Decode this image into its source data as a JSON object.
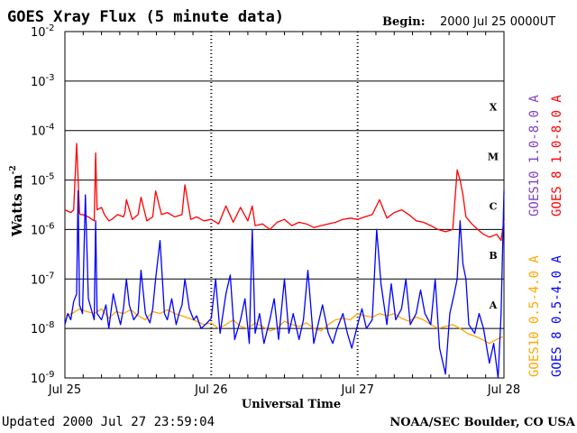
{
  "chart_data": {
    "type": "line",
    "title": "GOES Xray Flux (5 minute data)",
    "begin_label": "Begin:",
    "begin_value": "2000 Jul 25 0000UT",
    "xlabel": "Universal Time",
    "ylabel": "Watts m",
    "ylabel_sup": "-2",
    "y_scale": "log",
    "ylim": [
      1e-09,
      0.01
    ],
    "y_ticks": [
      {
        "value": 0.01,
        "base": "10",
        "exp": "-2"
      },
      {
        "value": 0.001,
        "base": "10",
        "exp": "-3"
      },
      {
        "value": 0.0001,
        "base": "10",
        "exp": "-4"
      },
      {
        "value": 1e-05,
        "base": "10",
        "exp": "-5"
      },
      {
        "value": 1e-06,
        "base": "10",
        "exp": "-6"
      },
      {
        "value": 1e-07,
        "base": "10",
        "exp": "-7"
      },
      {
        "value": 1e-08,
        "base": "10",
        "exp": "-8"
      },
      {
        "value": 1e-09,
        "base": "10",
        "exp": "-9"
      }
    ],
    "x_domain_days": [
      0,
      3
    ],
    "x_ticks": [
      {
        "value": 0,
        "label": "Jul 25"
      },
      {
        "value": 1,
        "label": "Jul 26"
      },
      {
        "value": 2,
        "label": "Jul 27"
      },
      {
        "value": 3,
        "label": "Jul 28"
      }
    ],
    "flare_classes": [
      {
        "label": "X",
        "value": 0.0003
      },
      {
        "label": "M",
        "value": 3e-05
      },
      {
        "label": "C",
        "value": 3e-06
      },
      {
        "label": "B",
        "value": 3e-07
      },
      {
        "label": "A",
        "value": 3e-08
      }
    ],
    "grid": "horizontal lines at each decade 1e-8 to 1e-3; dotted vertical lines at day boundaries",
    "legend_position": "right, vertical",
    "series": [
      {
        "name": "GOES10 1.0-8.0 A",
        "color": "#8040c0",
        "x": [],
        "y": []
      },
      {
        "name": "GOES 8 1.0-8.0 A",
        "color": "#ff0000",
        "x": [
          0.0,
          0.04,
          0.06,
          0.08,
          0.1,
          0.105,
          0.12,
          0.14,
          0.16,
          0.2,
          0.21,
          0.22,
          0.25,
          0.27,
          0.3,
          0.32,
          0.36,
          0.4,
          0.41,
          0.42,
          0.46,
          0.5,
          0.52,
          0.56,
          0.6,
          0.62,
          0.66,
          0.7,
          0.75,
          0.8,
          0.82,
          0.86,
          0.9,
          0.95,
          1.0,
          1.05,
          1.1,
          1.15,
          1.2,
          1.25,
          1.28,
          1.3,
          1.35,
          1.4,
          1.45,
          1.5,
          1.55,
          1.6,
          1.65,
          1.7,
          1.75,
          1.8,
          1.85,
          1.9,
          1.95,
          2.0,
          2.05,
          2.1,
          2.15,
          2.2,
          2.25,
          2.3,
          2.35,
          2.4,
          2.45,
          2.5,
          2.55,
          2.6,
          2.65,
          2.68,
          2.7,
          2.72,
          2.74,
          2.78,
          2.82,
          2.86,
          2.9,
          2.95,
          2.98,
          3.0
        ],
        "y": [
          2.5e-06,
          2.2e-06,
          2.5e-06,
          5.5e-05,
          2.2e-06,
          2e-06,
          2e-06,
          1.9e-06,
          1.8e-06,
          1.5e-06,
          3.5e-05,
          2.5e-06,
          2.8e-06,
          2e-06,
          1.5e-06,
          1.6e-06,
          2e-06,
          1.8e-06,
          2.2e-06,
          4e-06,
          1.6e-06,
          2e-06,
          4.5e-06,
          1.5e-06,
          1.8e-06,
          6e-06,
          2e-06,
          2.2e-06,
          1.8e-06,
          2e-06,
          8e-06,
          1.6e-06,
          1.8e-06,
          1.5e-06,
          1.6e-06,
          1.3e-06,
          3e-06,
          1.4e-06,
          2.8e-06,
          1.5e-06,
          3e-06,
          1.2e-06,
          1.3e-06,
          1e-06,
          1.4e-06,
          1.6e-06,
          1.2e-06,
          1.4e-06,
          1.3e-06,
          1.1e-06,
          1.2e-06,
          1.3e-06,
          1.4e-06,
          1.6e-06,
          1.7e-06,
          1.6e-06,
          1.8e-06,
          2e-06,
          4e-06,
          1.7e-06,
          2.2e-06,
          2.5e-06,
          2e-06,
          1.5e-06,
          1.4e-06,
          1.2e-06,
          1e-06,
          9e-07,
          1e-06,
          1.6e-05,
          1e-05,
          5e-06,
          1.8e-06,
          1.3e-06,
          1e-06,
          8e-07,
          7e-07,
          8e-07,
          6e-07,
          1.5e-06
        ]
      },
      {
        "name": "GOES10 0.5-4.0 A",
        "color": "#ffa500",
        "x": [
          0.0,
          0.05,
          0.1,
          0.15,
          0.2,
          0.25,
          0.3,
          0.35,
          0.4,
          0.45,
          0.5,
          0.55,
          0.6,
          0.65,
          0.7,
          0.75,
          0.8,
          0.85,
          0.9,
          0.95,
          1.0,
          1.05,
          1.1,
          1.15,
          1.2,
          1.25,
          1.3,
          1.35,
          1.4,
          1.45,
          1.5,
          1.55,
          1.6,
          1.65,
          1.7,
          1.75,
          1.8,
          1.85,
          1.9,
          1.95,
          2.0,
          2.05,
          2.1,
          2.15,
          2.2,
          2.25,
          2.3,
          2.35,
          2.4,
          2.45,
          2.5,
          2.55,
          2.6,
          2.65,
          2.7,
          2.75,
          2.8,
          2.85,
          2.9,
          2.95,
          3.0
        ],
        "y": [
          1.8e-08,
          2e-08,
          2.5e-08,
          2.2e-08,
          2e-08,
          2.5e-08,
          1.6e-08,
          2.2e-08,
          2e-08,
          2.4e-08,
          1.8e-08,
          1.5e-08,
          2.2e-08,
          2e-08,
          2.4e-08,
          2e-08,
          1.8e-08,
          1.6e-08,
          1.4e-08,
          1.2e-08,
          1.3e-08,
          1e-08,
          1.2e-08,
          1.5e-08,
          1.1e-08,
          1e-08,
          1.3e-08,
          1.1e-08,
          9e-09,
          1e-08,
          1.4e-08,
          1.2e-08,
          1.1e-08,
          1.3e-08,
          1e-08,
          9e-09,
          1.2e-08,
          1.5e-08,
          1.6e-08,
          1.5e-08,
          2e-08,
          1.8e-08,
          1.7e-08,
          2e-08,
          1.8e-08,
          2e-08,
          1.6e-08,
          1.4e-08,
          1.7e-08,
          1.5e-08,
          1.2e-08,
          1e-08,
          1.1e-08,
          1.2e-08,
          1e-08,
          8e-09,
          7e-09,
          6e-09,
          5e-09,
          6e-09,
          7e-09
        ]
      },
      {
        "name": "GOES 8 0.5-4.0 A",
        "color": "#0000ff",
        "x": [
          0.0,
          0.02,
          0.04,
          0.06,
          0.08,
          0.09,
          0.1,
          0.12,
          0.14,
          0.16,
          0.2,
          0.21,
          0.22,
          0.25,
          0.28,
          0.3,
          0.33,
          0.36,
          0.38,
          0.4,
          0.42,
          0.44,
          0.47,
          0.5,
          0.52,
          0.55,
          0.58,
          0.6,
          0.62,
          0.65,
          0.68,
          0.7,
          0.73,
          0.76,
          0.78,
          0.8,
          0.82,
          0.85,
          0.88,
          0.9,
          0.93,
          0.96,
          1.0,
          1.03,
          1.06,
          1.1,
          1.13,
          1.16,
          1.2,
          1.23,
          1.26,
          1.28,
          1.3,
          1.33,
          1.36,
          1.4,
          1.43,
          1.46,
          1.5,
          1.53,
          1.56,
          1.6,
          1.63,
          1.66,
          1.7,
          1.73,
          1.76,
          1.8,
          1.83,
          1.86,
          1.9,
          1.93,
          1.96,
          2.0,
          2.03,
          2.06,
          2.1,
          2.13,
          2.16,
          2.2,
          2.23,
          2.26,
          2.3,
          2.33,
          2.36,
          2.4,
          2.43,
          2.46,
          2.5,
          2.53,
          2.56,
          2.6,
          2.63,
          2.66,
          2.68,
          2.7,
          2.72,
          2.74,
          2.76,
          2.8,
          2.83,
          2.86,
          2.9,
          2.93,
          2.96,
          2.98,
          3.0
        ],
        "y": [
          1.2e-08,
          2e-08,
          1.5e-08,
          3.5e-08,
          5e-08,
          6e-06,
          3e-08,
          2e-08,
          5e-06,
          4e-08,
          1.5e-08,
          1.5e-06,
          2e-08,
          1.5e-08,
          3e-08,
          1e-08,
          5e-08,
          2e-08,
          1.2e-08,
          2.5e-08,
          1e-07,
          3e-08,
          1.5e-08,
          2e-08,
          1.5e-07,
          2e-08,
          1.3e-08,
          2.5e-08,
          1e-07,
          6e-07,
          2e-08,
          1.5e-08,
          4e-08,
          1.2e-08,
          2e-08,
          3e-08,
          1e-07,
          2.5e-08,
          1.5e-08,
          1.8e-08,
          1e-08,
          1.2e-08,
          1.6e-08,
          1e-07,
          8e-09,
          5e-08,
          1.2e-07,
          6e-09,
          1.5e-08,
          4e-08,
          5e-09,
          1e-06,
          8e-09,
          2e-08,
          5e-09,
          1.5e-08,
          4e-08,
          6e-09,
          1e-07,
          8e-09,
          2e-08,
          6e-09,
          1.5e-08,
          1.5e-07,
          5e-09,
          1.2e-08,
          3e-08,
          8e-09,
          5e-09,
          1e-08,
          2e-08,
          8e-09,
          4e-09,
          1.2e-08,
          2.5e-08,
          1e-08,
          1.5e-08,
          1e-06,
          8e-08,
          1.2e-08,
          8e-08,
          1.5e-08,
          2.5e-08,
          1e-07,
          1.2e-08,
          2e-08,
          6e-08,
          2e-08,
          1.2e-08,
          1e-07,
          4e-09,
          1.2e-09,
          2e-08,
          5e-08,
          1e-07,
          1.5e-06,
          2e-07,
          1e-07,
          1.2e-08,
          8e-09,
          2e-08,
          1e-08,
          2e-09,
          5e-09,
          1e-09,
          2e-08,
          6e-06
        ]
      }
    ]
  },
  "footer": {
    "updated": "Updated 2000 Jul 27 23:59:04",
    "source": "NOAA/SEC Boulder, CO USA"
  }
}
